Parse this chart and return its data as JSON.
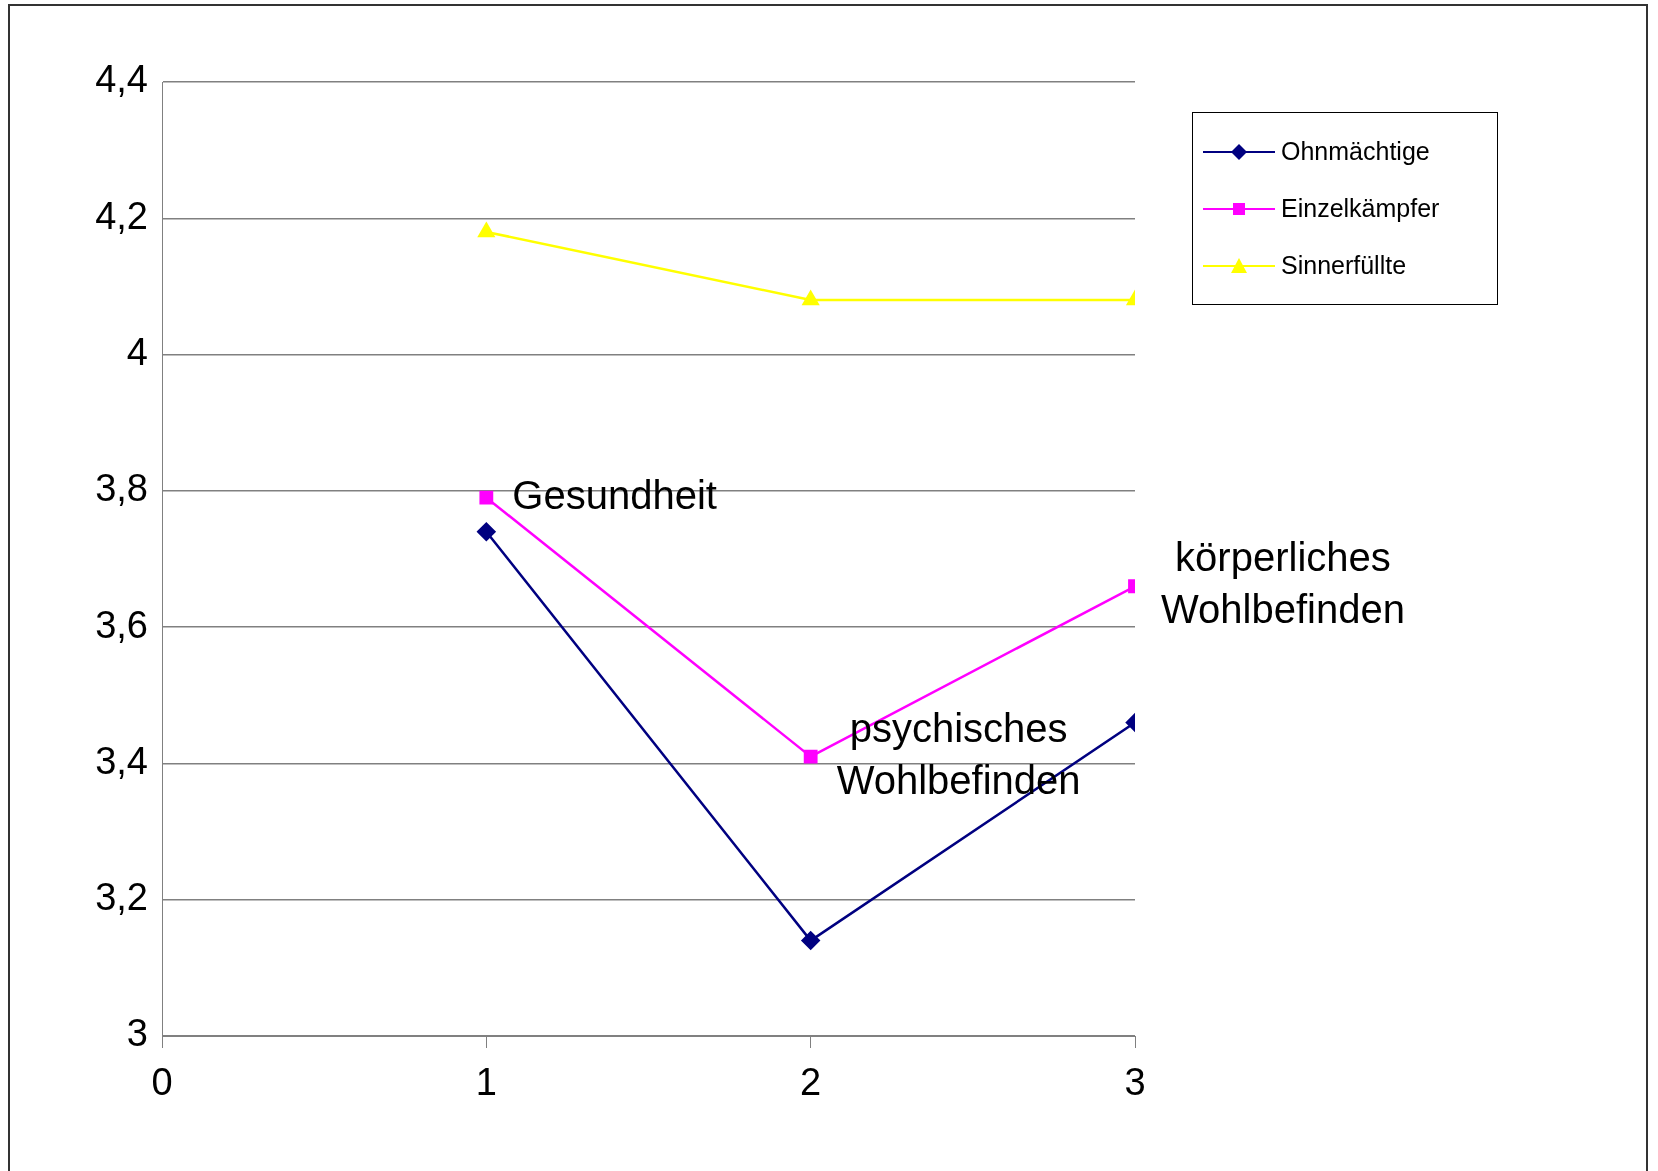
{
  "chart_data": {
    "type": "line",
    "x": [
      1,
      2,
      3
    ],
    "series": [
      {
        "name": "Ohnmächtige",
        "color": "#000080",
        "marker": "diamond",
        "values": [
          3.74,
          3.14,
          3.46
        ]
      },
      {
        "name": "Einzelkämpfer",
        "color": "#ff00ff",
        "marker": "square",
        "values": [
          3.79,
          3.41,
          3.66
        ]
      },
      {
        "name": "Sinnerfüllte",
        "color": "#ffff00",
        "marker": "triangle",
        "values": [
          4.18,
          4.08,
          4.08
        ]
      }
    ],
    "xlim": [
      0,
      3
    ],
    "xticks": [
      0,
      1,
      2,
      3
    ],
    "ylim": [
      3,
      4.4
    ],
    "yticks": [
      3,
      {
        "value": 3.2,
        "label": "3,2"
      },
      {
        "value": 3.4,
        "label": "3,4"
      },
      {
        "value": 3.6,
        "label": "3,6"
      },
      {
        "value": 3.8,
        "label": "3,8"
      },
      4,
      {
        "value": 4.2,
        "label": "4,2"
      },
      {
        "value": 4.4,
        "label": "4,4"
      }
    ],
    "grid": "y",
    "legend": "top right",
    "line_style": "solid",
    "annotations": [
      {
        "text": "Gesundheit",
        "x": 1,
        "y": 3.79
      },
      {
        "text": "psychisches\nWohlbefinden",
        "x": 2,
        "y": 3.41
      },
      {
        "text": "körperliches\nWohlbefinden",
        "x": 3,
        "y": 3.66
      }
    ]
  }
}
